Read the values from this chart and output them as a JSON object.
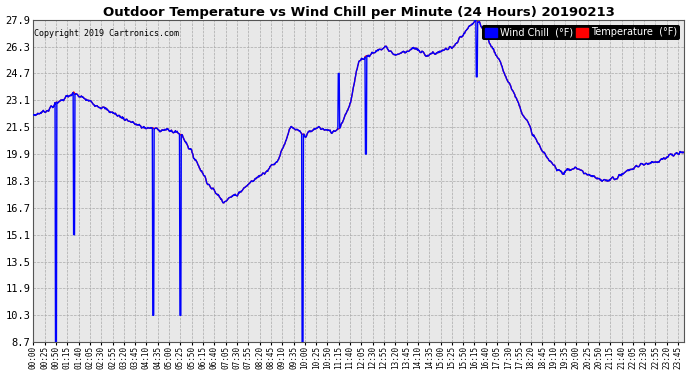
{
  "title": "Outdoor Temperature vs Wind Chill per Minute (24 Hours) 20190213",
  "copyright": "Copyright 2019 Cartronics.com",
  "background_color": "#ffffff",
  "plot_bg_color": "#e8e8e8",
  "grid_color": "#aaaaaa",
  "temp_color": "#ff0000",
  "wind_color": "#0000ff",
  "ylim": [
    8.7,
    27.9
  ],
  "yticks": [
    8.7,
    10.3,
    11.9,
    13.5,
    15.1,
    16.7,
    18.3,
    19.9,
    21.5,
    23.1,
    24.7,
    26.3,
    27.9
  ],
  "legend_wind_label": "Wind Chill  (°F)",
  "legend_temp_label": "Temperature  (°F)",
  "num_minutes": 1440,
  "tick_interval_minutes": 25
}
